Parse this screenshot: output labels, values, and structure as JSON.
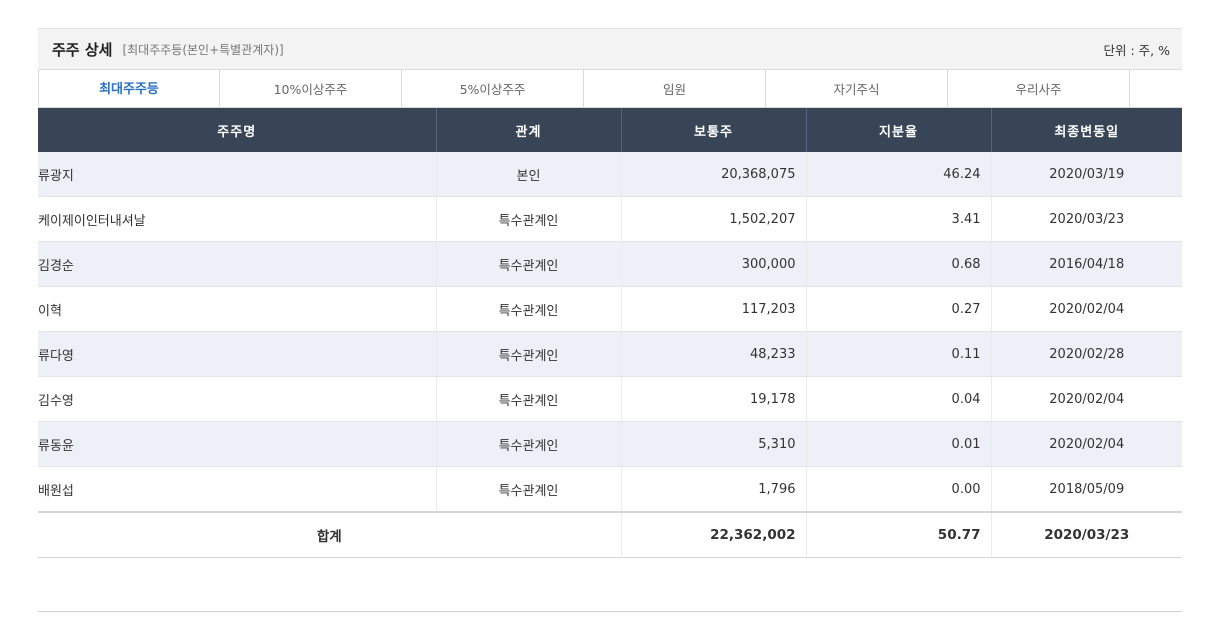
{
  "header": {
    "title": "주주 상세",
    "subtitle": "[최대주주등(본인+특별관계자)]",
    "unit": "단위 : 주, %"
  },
  "tabs": [
    {
      "label": "최대주주등",
      "active": true
    },
    {
      "label": "10%이상주주",
      "active": false
    },
    {
      "label": "5%이상주주",
      "active": false
    },
    {
      "label": "임원",
      "active": false
    },
    {
      "label": "자기주식",
      "active": false
    },
    {
      "label": "우리사주",
      "active": false
    }
  ],
  "table": {
    "columns": [
      "주주명",
      "관계",
      "보통주",
      "지분율",
      "최종변동일"
    ],
    "rows": [
      {
        "name": "류광지",
        "relation": "본인",
        "shares": "20,368,075",
        "ratio": "46.24",
        "date": "2020/03/19"
      },
      {
        "name": "케이제이인터내셔날",
        "relation": "특수관계인",
        "shares": "1,502,207",
        "ratio": "3.41",
        "date": "2020/03/23"
      },
      {
        "name": "김경순",
        "relation": "특수관계인",
        "shares": "300,000",
        "ratio": "0.68",
        "date": "2016/04/18"
      },
      {
        "name": "이혁",
        "relation": "특수관계인",
        "shares": "117,203",
        "ratio": "0.27",
        "date": "2020/02/04"
      },
      {
        "name": "류다영",
        "relation": "특수관계인",
        "shares": "48,233",
        "ratio": "0.11",
        "date": "2020/02/28"
      },
      {
        "name": "김수영",
        "relation": "특수관계인",
        "shares": "19,178",
        "ratio": "0.04",
        "date": "2020/02/04"
      },
      {
        "name": "류동윤",
        "relation": "특수관계인",
        "shares": "5,310",
        "ratio": "0.01",
        "date": "2020/02/04"
      },
      {
        "name": "배원섭",
        "relation": "특수관계인",
        "shares": "1,796",
        "ratio": "0.00",
        "date": "2018/05/09"
      }
    ],
    "total": {
      "label": "합계",
      "shares": "22,362,002",
      "ratio": "50.77",
      "date": "2020/03/23"
    }
  },
  "colors": {
    "header_bg": "#384556",
    "active_tab": "#2a6fc4",
    "row_stripe": "#edf0f7"
  }
}
